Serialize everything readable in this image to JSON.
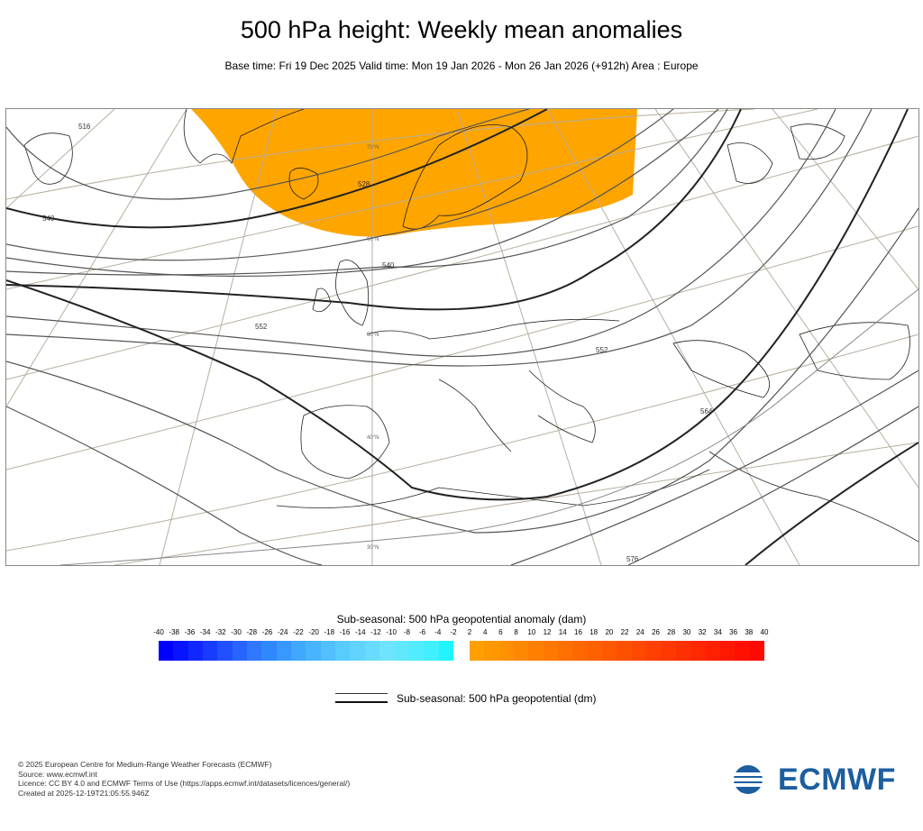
{
  "title": "500 hPa height: Weekly mean anomalies",
  "subtitle": "Base time: Fri 19 Dec 2025 Valid time: Mon 19 Jan 2026 - Mon 26 Jan 2026 (+912h) Area : Europe",
  "map": {
    "contour_labels": [
      "540",
      "540",
      "552",
      "552",
      "564",
      "576",
      "528",
      "516"
    ],
    "lat_labels": [
      "70°N",
      "60°N",
      "50°N",
      "40°N",
      "30°N"
    ],
    "anomaly_color": "#ffa500"
  },
  "colorbar": {
    "title": "Sub-seasonal: 500 hPa geopotential anomaly (dam)",
    "negative_ticks": [
      "-40",
      "-38",
      "-36",
      "-34",
      "-32",
      "-30",
      "-28",
      "-26",
      "-24",
      "-22",
      "-20",
      "-18",
      "-16",
      "-14",
      "-12",
      "-10",
      "-8",
      "-6",
      "-4",
      "-2"
    ],
    "positive_ticks": [
      "2",
      "4",
      "6",
      "8",
      "10",
      "12",
      "14",
      "16",
      "18",
      "20",
      "22",
      "24",
      "26",
      "28",
      "30",
      "32",
      "34",
      "36",
      "38",
      "40"
    ],
    "negative_colors": [
      "#0000ff",
      "#0814ff",
      "#1028ff",
      "#183cff",
      "#2050ff",
      "#2864ff",
      "#3078ff",
      "#3088ff",
      "#3898ff",
      "#40a8ff",
      "#48b4ff",
      "#50c0ff",
      "#58ccff",
      "#60d4ff",
      "#68dcff",
      "#70e4ff",
      "#60e8ff",
      "#50ecff",
      "#40f0ff",
      "#20f4ff"
    ],
    "positive_colors": [
      "#ffa000",
      "#ff9800",
      "#ff9000",
      "#ff8800",
      "#ff8000",
      "#ff7800",
      "#ff7000",
      "#ff6800",
      "#ff6000",
      "#ff5800",
      "#ff5000",
      "#ff4800",
      "#ff4000",
      "#ff3800",
      "#ff3000",
      "#ff2800",
      "#ff2000",
      "#ff1800",
      "#ff1000",
      "#ff0800"
    ]
  },
  "legend": {
    "label": "Sub-seasonal: 500 hPa geopotential (dm)"
  },
  "footer": {
    "lines": [
      "© 2025 European Centre for Medium-Range Weather Forecasts (ECMWF)",
      "Source: www.ecmwf.int",
      "Licence: CC BY 4.0 and ECMWF Terms of Use (https://apps.ecmwf.int/datasets/licences/general/)",
      "Created at 2025-12-19T21:05:55.946Z"
    ]
  },
  "logo": {
    "text": "ECMWF",
    "color": "#1c5ea0"
  }
}
